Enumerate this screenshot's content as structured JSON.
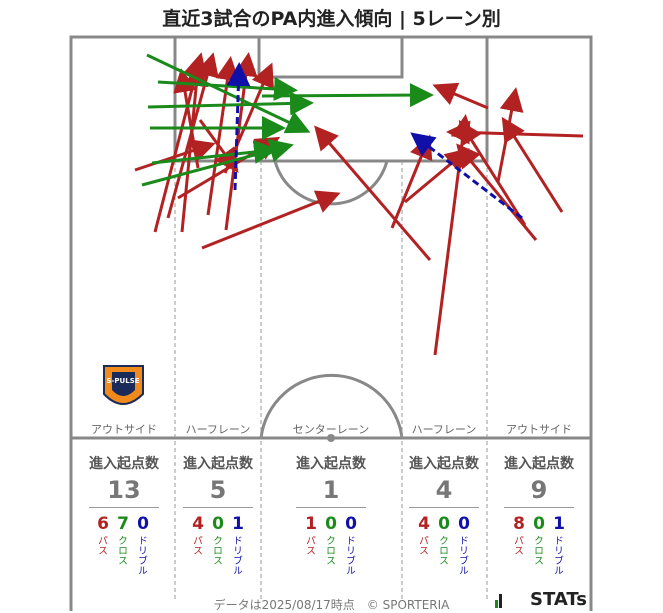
{
  "title": "直近3試合のPA内進入傾向 | 5レーン別",
  "lanes": [
    {
      "label": "アウトサイド",
      "head": "進入起点数",
      "total": "13",
      "pass": "6",
      "cross": "7",
      "dribble": "0"
    },
    {
      "label": "ハーフレーン",
      "head": "進入起点数",
      "total": "5",
      "pass": "4",
      "cross": "0",
      "dribble": "1"
    },
    {
      "label": "センターレーン",
      "head": "進入起点数",
      "total": "1",
      "pass": "1",
      "cross": "0",
      "dribble": "0"
    },
    {
      "label": "ハーフレーン",
      "head": "進入起点数",
      "total": "4",
      "pass": "4",
      "cross": "0",
      "dribble": "0"
    },
    {
      "label": "アウトサイド",
      "head": "進入起点数",
      "total": "9",
      "pass": "8",
      "cross": "0",
      "dribble": "1"
    }
  ],
  "kinds": {
    "pass": "パス",
    "cross": "クロス",
    "dribble": "ドリブル"
  },
  "colors": {
    "pass": "#b22222",
    "cross": "#1a8a1a",
    "dribble": "#1010a8"
  },
  "club_badge": {
    "text": "S-PULSE"
  },
  "footer": "データは2025/08/17時点　© SPORTERIA",
  "brand": "STATs"
}
